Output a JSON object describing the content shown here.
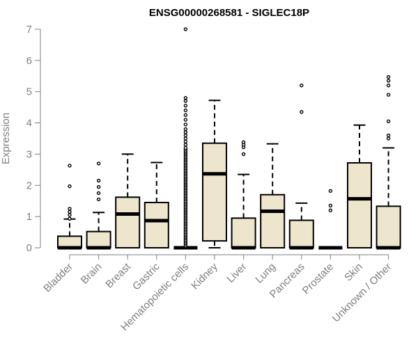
{
  "chart_data": {
    "type": "boxplot",
    "title": "ENSG00000268581 - SIGLEC18P",
    "ylabel": "Expression",
    "xlabel": "",
    "ylim": [
      0,
      7
    ],
    "yticks": [
      0,
      1,
      2,
      3,
      4,
      5,
      6,
      7
    ],
    "box_fill": "#ede6cc",
    "categories": [
      "Bladder",
      "Brain",
      "Breast",
      "Gastric",
      "Hematopoietic cells",
      "Kidney",
      "Liver",
      "Lung",
      "Pancreas",
      "Prostate",
      "Skin",
      "Unknown / Other"
    ],
    "boxes": [
      {
        "category": "Bladder",
        "min": 0,
        "q1": 0,
        "median": 0,
        "q3": 0.37,
        "max": 0.92,
        "outliers": [
          0.93,
          1.05,
          1.15,
          1.25,
          1.97,
          2.63
        ]
      },
      {
        "category": "Brain",
        "min": 0,
        "q1": 0,
        "median": 0,
        "q3": 0.52,
        "max": 1.13,
        "outliers": [
          1.55,
          1.75,
          1.95,
          2.15,
          2.7
        ]
      },
      {
        "category": "Breast",
        "min": 0,
        "q1": 0,
        "median": 1.08,
        "q3": 1.62,
        "max": 3.0,
        "outliers": []
      },
      {
        "category": "Gastric",
        "min": 0,
        "q1": 0,
        "median": 0.87,
        "q3": 1.45,
        "max": 2.73,
        "outliers": []
      },
      {
        "category": "Hematopoietic cells",
        "min": 0,
        "q1": 0,
        "median": 0,
        "q3": 0,
        "max": 0,
        "outliers": [
          0.05,
          0.1,
          0.15,
          0.2,
          0.25,
          0.3,
          0.35,
          0.4,
          0.45,
          0.5,
          0.55,
          0.6,
          0.65,
          0.7,
          0.75,
          0.8,
          0.85,
          0.9,
          0.95,
          1.0,
          1.05,
          1.1,
          1.15,
          1.2,
          1.25,
          1.3,
          1.35,
          1.4,
          1.45,
          1.5,
          1.55,
          1.6,
          1.65,
          1.7,
          1.75,
          1.8,
          1.85,
          1.9,
          1.95,
          2.0,
          2.05,
          2.1,
          2.15,
          2.2,
          2.25,
          2.3,
          2.35,
          2.4,
          2.45,
          2.5,
          2.55,
          2.6,
          2.65,
          2.7,
          2.75,
          2.8,
          2.85,
          2.9,
          2.95,
          3.0,
          3.05,
          3.1,
          3.15,
          3.2,
          3.3,
          3.4,
          3.5,
          3.6,
          3.7,
          3.8,
          3.95,
          4.1,
          4.25,
          4.4,
          4.55,
          4.7,
          4.8,
          7.0
        ]
      },
      {
        "category": "Kidney",
        "min": 0,
        "q1": 0.22,
        "median": 2.37,
        "q3": 3.35,
        "max": 4.72,
        "outliers": []
      },
      {
        "category": "Liver",
        "min": 0,
        "q1": 0,
        "median": 0,
        "q3": 0.95,
        "max": 2.35,
        "outliers": [
          3.0,
          3.22,
          3.3,
          3.38
        ]
      },
      {
        "category": "Lung",
        "min": 0,
        "q1": 0,
        "median": 1.17,
        "q3": 1.7,
        "max": 3.33,
        "outliers": []
      },
      {
        "category": "Pancreas",
        "min": 0,
        "q1": 0,
        "median": 0,
        "q3": 0.88,
        "max": 1.43,
        "outliers": [
          4.35,
          5.2
        ]
      },
      {
        "category": "Prostate",
        "min": 0,
        "q1": 0,
        "median": 0,
        "q3": 0,
        "max": 0,
        "outliers": [
          1.2,
          1.35,
          1.82
        ]
      },
      {
        "category": "Skin",
        "min": 0,
        "q1": 0,
        "median": 1.57,
        "q3": 2.72,
        "max": 3.93,
        "outliers": []
      },
      {
        "category": "Unknown / Other",
        "min": 0,
        "q1": 0,
        "median": 0,
        "q3": 1.33,
        "max": 3.2,
        "outliers": [
          3.5,
          3.6,
          4.05,
          4.9,
          5.2,
          5.35,
          5.47
        ]
      }
    ]
  }
}
